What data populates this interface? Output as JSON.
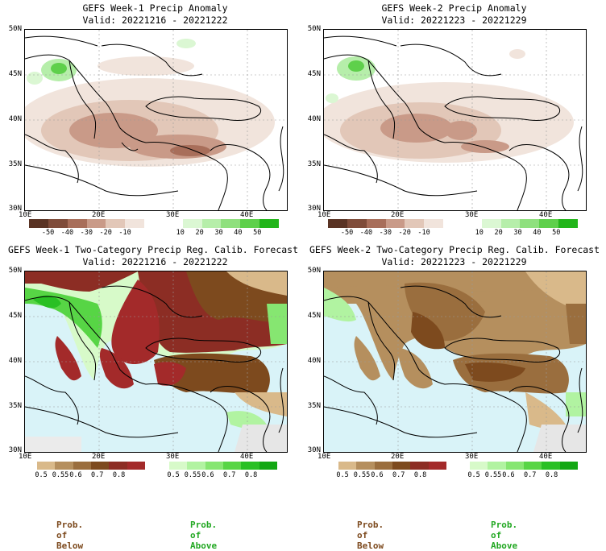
{
  "panels": [
    {
      "title": "GEFS Week-1 Precip Anomaly",
      "valid": "Valid: 20221216 - 20221222"
    },
    {
      "title": "GEFS Week-2 Precip Anomaly",
      "valid": "Valid: 20221223 - 20221229"
    },
    {
      "title": "GEFS Week-1 Two-Category Precip Reg. Calib. Forecast",
      "valid": "Valid: 20221216 - 20221222"
    },
    {
      "title": "GEFS Week-2 Two-Category Precip Reg. Calib. Forecast",
      "valid": "Valid: 20221223 - 20221229"
    }
  ],
  "lat_labels": [
    "50N",
    "45N",
    "40N",
    "35N",
    "30N"
  ],
  "lon_labels": [
    "10E",
    "20E",
    "30E",
    "40E"
  ],
  "anomaly_colorbar": {
    "ticks": [
      "-50",
      "-40",
      "-30",
      "-20",
      "-10",
      "10",
      "20",
      "30",
      "40",
      "50"
    ],
    "colors": [
      "#5a3324",
      "#7f4c3a",
      "#a86e5a",
      "#c99a88",
      "#e2c7b8",
      "#f1e4dc",
      "#ffffff",
      "#ffffff",
      "#dbf7d3",
      "#b6eeaa",
      "#8fe07e",
      "#5ed04b",
      "#22b51a"
    ]
  },
  "below_colorbar": {
    "ticks": [
      "0.5",
      "0.55",
      "0.6",
      "0.7",
      "0.8"
    ],
    "colors": [
      "#d9b98a",
      "#b58f5e",
      "#9a6e3e",
      "#7d4a1e",
      "#8c2d24",
      "#a32a2a"
    ]
  },
  "above_colorbar": {
    "ticks": [
      "0.5",
      "0.55",
      "0.6",
      "0.7",
      "0.8"
    ],
    "colors": [
      "#d7fac9",
      "#b1f3a1",
      "#86e671",
      "#57d545",
      "#29c024",
      "#12a713"
    ]
  },
  "legend": {
    "below": "Prob. of Below",
    "above": "Prob. of Above",
    "below_color": "#7d4a1e",
    "above_color": "#22a822"
  }
}
